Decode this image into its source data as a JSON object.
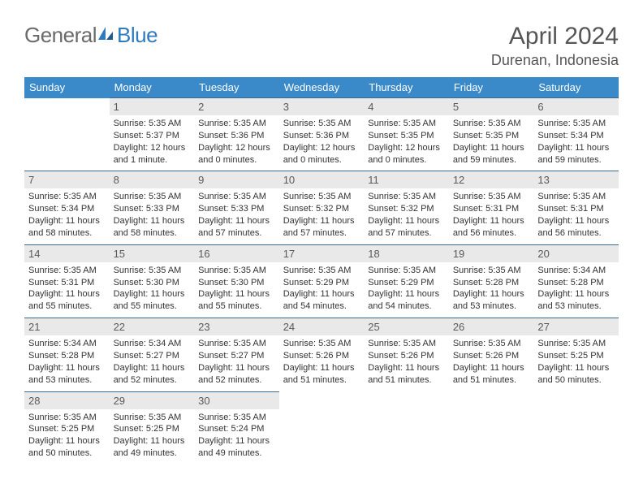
{
  "brand": {
    "part1": "General",
    "part2": "Blue"
  },
  "title": "April 2024",
  "location": "Durenan, Indonesia",
  "header_bg": "#3a89c9",
  "days": [
    "Sunday",
    "Monday",
    "Tuesday",
    "Wednesday",
    "Thursday",
    "Friday",
    "Saturday"
  ],
  "weeks": [
    [
      null,
      {
        "n": "1",
        "sr": "Sunrise: 5:35 AM",
        "ss": "Sunset: 5:37 PM",
        "d1": "Daylight: 12 hours",
        "d2": "and 1 minute."
      },
      {
        "n": "2",
        "sr": "Sunrise: 5:35 AM",
        "ss": "Sunset: 5:36 PM",
        "d1": "Daylight: 12 hours",
        "d2": "and 0 minutes."
      },
      {
        "n": "3",
        "sr": "Sunrise: 5:35 AM",
        "ss": "Sunset: 5:36 PM",
        "d1": "Daylight: 12 hours",
        "d2": "and 0 minutes."
      },
      {
        "n": "4",
        "sr": "Sunrise: 5:35 AM",
        "ss": "Sunset: 5:35 PM",
        "d1": "Daylight: 12 hours",
        "d2": "and 0 minutes."
      },
      {
        "n": "5",
        "sr": "Sunrise: 5:35 AM",
        "ss": "Sunset: 5:35 PM",
        "d1": "Daylight: 11 hours",
        "d2": "and 59 minutes."
      },
      {
        "n": "6",
        "sr": "Sunrise: 5:35 AM",
        "ss": "Sunset: 5:34 PM",
        "d1": "Daylight: 11 hours",
        "d2": "and 59 minutes."
      }
    ],
    [
      {
        "n": "7",
        "sr": "Sunrise: 5:35 AM",
        "ss": "Sunset: 5:34 PM",
        "d1": "Daylight: 11 hours",
        "d2": "and 58 minutes."
      },
      {
        "n": "8",
        "sr": "Sunrise: 5:35 AM",
        "ss": "Sunset: 5:33 PM",
        "d1": "Daylight: 11 hours",
        "d2": "and 58 minutes."
      },
      {
        "n": "9",
        "sr": "Sunrise: 5:35 AM",
        "ss": "Sunset: 5:33 PM",
        "d1": "Daylight: 11 hours",
        "d2": "and 57 minutes."
      },
      {
        "n": "10",
        "sr": "Sunrise: 5:35 AM",
        "ss": "Sunset: 5:32 PM",
        "d1": "Daylight: 11 hours",
        "d2": "and 57 minutes."
      },
      {
        "n": "11",
        "sr": "Sunrise: 5:35 AM",
        "ss": "Sunset: 5:32 PM",
        "d1": "Daylight: 11 hours",
        "d2": "and 57 minutes."
      },
      {
        "n": "12",
        "sr": "Sunrise: 5:35 AM",
        "ss": "Sunset: 5:31 PM",
        "d1": "Daylight: 11 hours",
        "d2": "and 56 minutes."
      },
      {
        "n": "13",
        "sr": "Sunrise: 5:35 AM",
        "ss": "Sunset: 5:31 PM",
        "d1": "Daylight: 11 hours",
        "d2": "and 56 minutes."
      }
    ],
    [
      {
        "n": "14",
        "sr": "Sunrise: 5:35 AM",
        "ss": "Sunset: 5:31 PM",
        "d1": "Daylight: 11 hours",
        "d2": "and 55 minutes."
      },
      {
        "n": "15",
        "sr": "Sunrise: 5:35 AM",
        "ss": "Sunset: 5:30 PM",
        "d1": "Daylight: 11 hours",
        "d2": "and 55 minutes."
      },
      {
        "n": "16",
        "sr": "Sunrise: 5:35 AM",
        "ss": "Sunset: 5:30 PM",
        "d1": "Daylight: 11 hours",
        "d2": "and 55 minutes."
      },
      {
        "n": "17",
        "sr": "Sunrise: 5:35 AM",
        "ss": "Sunset: 5:29 PM",
        "d1": "Daylight: 11 hours",
        "d2": "and 54 minutes."
      },
      {
        "n": "18",
        "sr": "Sunrise: 5:35 AM",
        "ss": "Sunset: 5:29 PM",
        "d1": "Daylight: 11 hours",
        "d2": "and 54 minutes."
      },
      {
        "n": "19",
        "sr": "Sunrise: 5:35 AM",
        "ss": "Sunset: 5:28 PM",
        "d1": "Daylight: 11 hours",
        "d2": "and 53 minutes."
      },
      {
        "n": "20",
        "sr": "Sunrise: 5:34 AM",
        "ss": "Sunset: 5:28 PM",
        "d1": "Daylight: 11 hours",
        "d2": "and 53 minutes."
      }
    ],
    [
      {
        "n": "21",
        "sr": "Sunrise: 5:34 AM",
        "ss": "Sunset: 5:28 PM",
        "d1": "Daylight: 11 hours",
        "d2": "and 53 minutes."
      },
      {
        "n": "22",
        "sr": "Sunrise: 5:34 AM",
        "ss": "Sunset: 5:27 PM",
        "d1": "Daylight: 11 hours",
        "d2": "and 52 minutes."
      },
      {
        "n": "23",
        "sr": "Sunrise: 5:35 AM",
        "ss": "Sunset: 5:27 PM",
        "d1": "Daylight: 11 hours",
        "d2": "and 52 minutes."
      },
      {
        "n": "24",
        "sr": "Sunrise: 5:35 AM",
        "ss": "Sunset: 5:26 PM",
        "d1": "Daylight: 11 hours",
        "d2": "and 51 minutes."
      },
      {
        "n": "25",
        "sr": "Sunrise: 5:35 AM",
        "ss": "Sunset: 5:26 PM",
        "d1": "Daylight: 11 hours",
        "d2": "and 51 minutes."
      },
      {
        "n": "26",
        "sr": "Sunrise: 5:35 AM",
        "ss": "Sunset: 5:26 PM",
        "d1": "Daylight: 11 hours",
        "d2": "and 51 minutes."
      },
      {
        "n": "27",
        "sr": "Sunrise: 5:35 AM",
        "ss": "Sunset: 5:25 PM",
        "d1": "Daylight: 11 hours",
        "d2": "and 50 minutes."
      }
    ],
    [
      {
        "n": "28",
        "sr": "Sunrise: 5:35 AM",
        "ss": "Sunset: 5:25 PM",
        "d1": "Daylight: 11 hours",
        "d2": "and 50 minutes."
      },
      {
        "n": "29",
        "sr": "Sunrise: 5:35 AM",
        "ss": "Sunset: 5:25 PM",
        "d1": "Daylight: 11 hours",
        "d2": "and 49 minutes."
      },
      {
        "n": "30",
        "sr": "Sunrise: 5:35 AM",
        "ss": "Sunset: 5:24 PM",
        "d1": "Daylight: 11 hours",
        "d2": "and 49 minutes."
      },
      null,
      null,
      null,
      null
    ]
  ]
}
